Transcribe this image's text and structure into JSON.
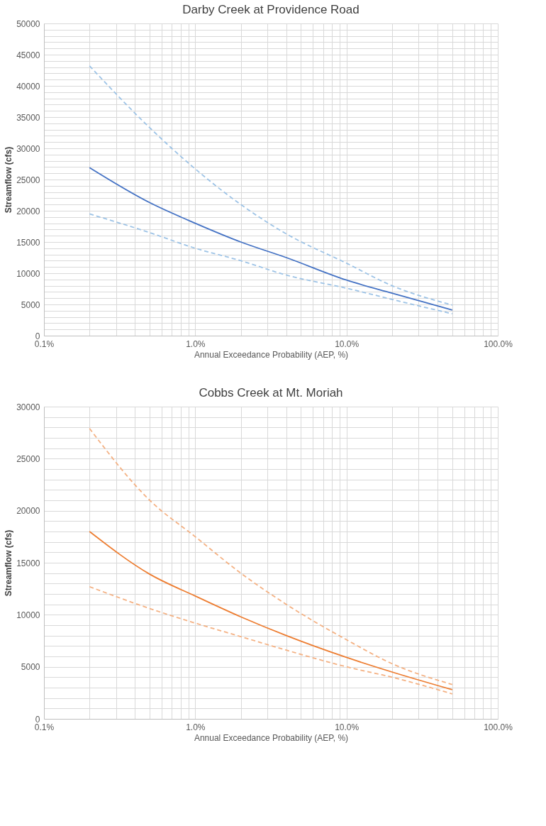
{
  "chart_data": [
    {
      "type": "line",
      "title": "Darby Creek at Providence Road",
      "xlabel": "Annual Exceedance Probability (AEP, %)",
      "ylabel": "Streamflow (cfs)",
      "log": "x",
      "grid": true,
      "legend": false,
      "marker": "none",
      "x": [
        0.2,
        0.5,
        1,
        2,
        4,
        10,
        20,
        50
      ],
      "series": [
        {
          "color": "#9dc3e6",
          "line_style": "dashed",
          "values": [
            43200,
            33300,
            26700,
            21000,
            16300,
            11600,
            8000,
            4900
          ]
        },
        {
          "color": "#9dc3e6",
          "line_style": "dashed",
          "values": [
            19500,
            16500,
            14000,
            12000,
            9700,
            7600,
            5800,
            3500
          ]
        },
        {
          "color": "#4472c4",
          "line_style": "solid",
          "values": [
            26900,
            21300,
            18000,
            15000,
            12500,
            8900,
            6800,
            4100
          ]
        }
      ],
      "xlim": [
        0.1,
        100
      ],
      "xticks": [
        {
          "value": 0.1,
          "label": "0.1%"
        },
        {
          "value": 0.2,
          "label": null
        },
        {
          "value": 0.3,
          "label": null
        },
        {
          "value": 0.4,
          "label": null
        },
        {
          "value": 0.5,
          "label": null
        },
        {
          "value": 0.6,
          "label": null
        },
        {
          "value": 0.7,
          "label": null
        },
        {
          "value": 0.8,
          "label": null
        },
        {
          "value": 0.9,
          "label": null
        },
        {
          "value": 1,
          "label": "1.0%"
        },
        {
          "value": 2,
          "label": null
        },
        {
          "value": 3,
          "label": null
        },
        {
          "value": 4,
          "label": null
        },
        {
          "value": 5,
          "label": null
        },
        {
          "value": 6,
          "label": null
        },
        {
          "value": 7,
          "label": null
        },
        {
          "value": 8,
          "label": null
        },
        {
          "value": 9,
          "label": null
        },
        {
          "value": 10,
          "label": "10.0%"
        },
        {
          "value": 20,
          "label": null
        },
        {
          "value": 30,
          "label": null
        },
        {
          "value": 40,
          "label": null
        },
        {
          "value": 50,
          "label": null
        },
        {
          "value": 60,
          "label": null
        },
        {
          "value": 70,
          "label": null
        },
        {
          "value": 80,
          "label": null
        },
        {
          "value": 90,
          "label": null
        },
        {
          "value": 100,
          "label": "100.0%"
        }
      ],
      "ylim": [
        0,
        50000
      ],
      "yticks": [
        0,
        {
          "value": 1000,
          "label": null
        },
        {
          "value": 2000,
          "label": null
        },
        {
          "value": 3000,
          "label": null
        },
        {
          "value": 4000,
          "label": null
        },
        5000,
        {
          "value": 6000,
          "label": null
        },
        {
          "value": 7000,
          "label": null
        },
        {
          "value": 8000,
          "label": null
        },
        {
          "value": 9000,
          "label": null
        },
        10000,
        {
          "value": 11000,
          "label": null
        },
        {
          "value": 12000,
          "label": null
        },
        {
          "value": 13000,
          "label": null
        },
        {
          "value": 14000,
          "label": null
        },
        15000,
        {
          "value": 16000,
          "label": null
        },
        {
          "value": 17000,
          "label": null
        },
        {
          "value": 18000,
          "label": null
        },
        {
          "value": 19000,
          "label": null
        },
        20000,
        {
          "value": 21000,
          "label": null
        },
        {
          "value": 22000,
          "label": null
        },
        {
          "value": 23000,
          "label": null
        },
        {
          "value": 24000,
          "label": null
        },
        25000,
        {
          "value": 26000,
          "label": null
        },
        {
          "value": 27000,
          "label": null
        },
        {
          "value": 28000,
          "label": null
        },
        {
          "value": 29000,
          "label": null
        },
        30000,
        {
          "value": 31000,
          "label": null
        },
        {
          "value": 32000,
          "label": null
        },
        {
          "value": 33000,
          "label": null
        },
        {
          "value": 34000,
          "label": null
        },
        35000,
        {
          "value": 36000,
          "label": null
        },
        {
          "value": 37000,
          "label": null
        },
        {
          "value": 38000,
          "label": null
        },
        {
          "value": 39000,
          "label": null
        },
        40000,
        {
          "value": 41000,
          "label": null
        },
        {
          "value": 42000,
          "label": null
        },
        {
          "value": 43000,
          "label": null
        },
        {
          "value": 44000,
          "label": null
        },
        45000,
        {
          "value": 46000,
          "label": null
        },
        {
          "value": 47000,
          "label": null
        },
        {
          "value": 48000,
          "label": null
        },
        {
          "value": 49000,
          "label": null
        },
        50000
      ]
    },
    {
      "type": "line",
      "title": "Cobbs Creek at Mt. Moriah",
      "xlabel": "Annual Exceedance Probability (AEP, %)",
      "ylabel": "Streamflow (cfs)",
      "log": "x",
      "grid": true,
      "legend": false,
      "marker": "none",
      "x": [
        0.2,
        0.5,
        1,
        2,
        4,
        10,
        20,
        50
      ],
      "series": [
        {
          "color": "#f4b183",
          "line_style": "dashed",
          "values": [
            27900,
            21000,
            17500,
            14000,
            11000,
            7600,
            5300,
            3300
          ]
        },
        {
          "color": "#f4b183",
          "line_style": "dashed",
          "values": [
            12700,
            10600,
            9200,
            7900,
            6600,
            5000,
            4000,
            2400
          ]
        },
        {
          "color": "#ed7d31",
          "line_style": "solid",
          "values": [
            18000,
            13900,
            11800,
            9800,
            8000,
            5900,
            4500,
            2800
          ]
        }
      ],
      "xlim": [
        0.1,
        100
      ],
      "xticks": [
        {
          "value": 0.1,
          "label": "0.1%"
        },
        {
          "value": 0.2,
          "label": null
        },
        {
          "value": 0.3,
          "label": null
        },
        {
          "value": 0.4,
          "label": null
        },
        {
          "value": 0.5,
          "label": null
        },
        {
          "value": 0.6,
          "label": null
        },
        {
          "value": 0.7,
          "label": null
        },
        {
          "value": 0.8,
          "label": null
        },
        {
          "value": 0.9,
          "label": null
        },
        {
          "value": 1,
          "label": "1.0%"
        },
        {
          "value": 2,
          "label": null
        },
        {
          "value": 3,
          "label": null
        },
        {
          "value": 4,
          "label": null
        },
        {
          "value": 5,
          "label": null
        },
        {
          "value": 6,
          "label": null
        },
        {
          "value": 7,
          "label": null
        },
        {
          "value": 8,
          "label": null
        },
        {
          "value": 9,
          "label": null
        },
        {
          "value": 10,
          "label": "10.0%"
        },
        {
          "value": 20,
          "label": null
        },
        {
          "value": 30,
          "label": null
        },
        {
          "value": 40,
          "label": null
        },
        {
          "value": 50,
          "label": null
        },
        {
          "value": 60,
          "label": null
        },
        {
          "value": 70,
          "label": null
        },
        {
          "value": 80,
          "label": null
        },
        {
          "value": 90,
          "label": null
        },
        {
          "value": 100,
          "label": "100.0%"
        }
      ],
      "ylim": [
        0,
        30000
      ],
      "yticks": [
        0,
        {
          "value": 1000,
          "label": null
        },
        {
          "value": 2000,
          "label": null
        },
        {
          "value": 3000,
          "label": null
        },
        {
          "value": 4000,
          "label": null
        },
        5000,
        {
          "value": 6000,
          "label": null
        },
        {
          "value": 7000,
          "label": null
        },
        {
          "value": 8000,
          "label": null
        },
        {
          "value": 9000,
          "label": null
        },
        10000,
        {
          "value": 11000,
          "label": null
        },
        {
          "value": 12000,
          "label": null
        },
        {
          "value": 13000,
          "label": null
        },
        {
          "value": 14000,
          "label": null
        },
        15000,
        {
          "value": 16000,
          "label": null
        },
        {
          "value": 17000,
          "label": null
        },
        {
          "value": 18000,
          "label": null
        },
        {
          "value": 19000,
          "label": null
        },
        20000,
        {
          "value": 21000,
          "label": null
        },
        {
          "value": 22000,
          "label": null
        },
        {
          "value": 23000,
          "label": null
        },
        {
          "value": 24000,
          "label": null
        },
        25000,
        {
          "value": 26000,
          "label": null
        },
        {
          "value": 27000,
          "label": null
        },
        {
          "value": 28000,
          "label": null
        },
        {
          "value": 29000,
          "label": null
        },
        30000
      ]
    }
  ]
}
